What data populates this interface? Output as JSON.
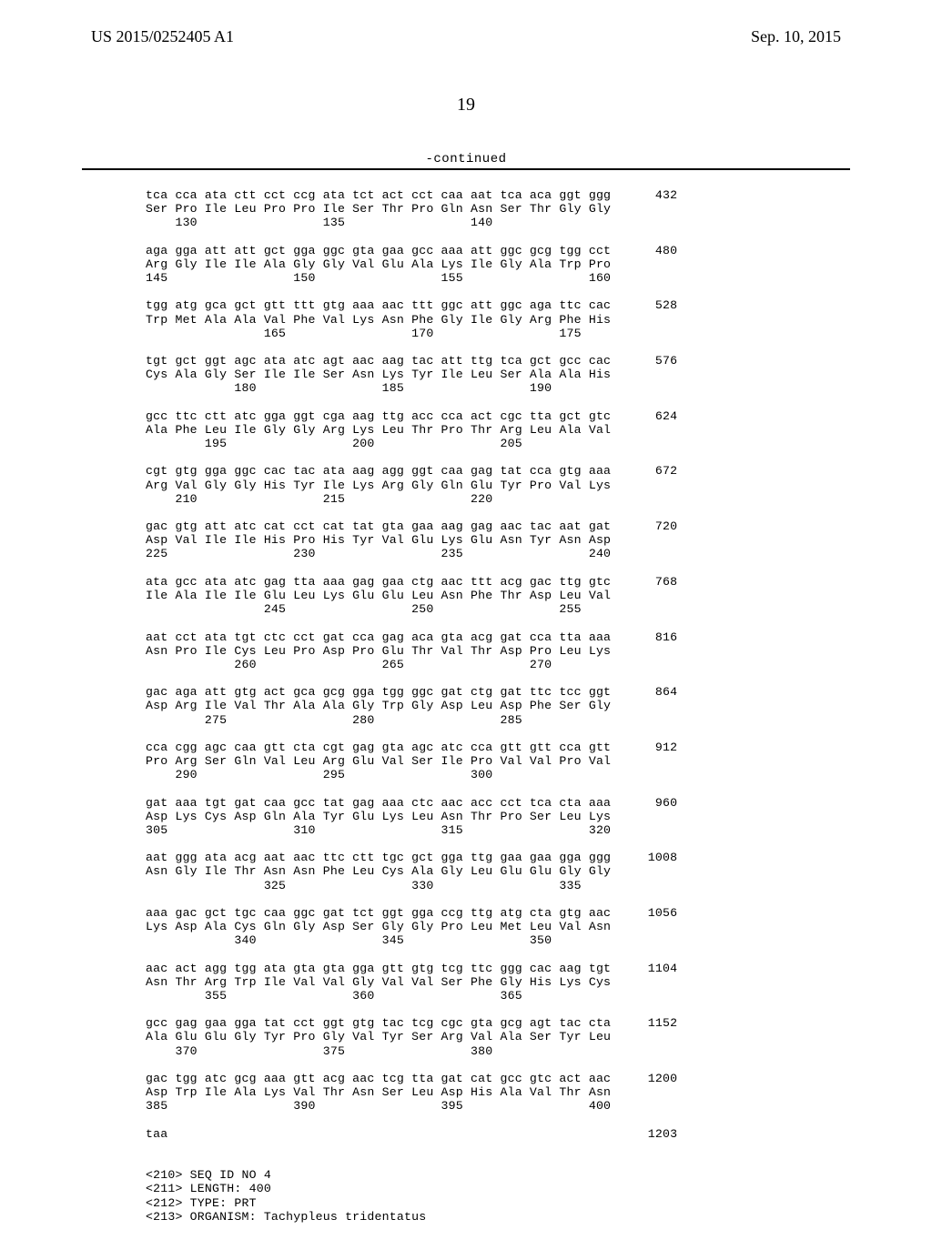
{
  "header": {
    "publication_number": "US 2015/0252405 A1",
    "publication_date": "Sep. 10, 2015"
  },
  "page_number": "19",
  "continued_label": "-continued",
  "sequence_text": "tca cca ata ctt cct ccg ata tct act cct caa aat tca aca ggt ggg      432\nSer Pro Ile Leu Pro Pro Ile Ser Thr Pro Gln Asn Ser Thr Gly Gly\n    130                 135                 140\n\naga gga att att gct gga ggc gta gaa gcc aaa att ggc gcg tgg cct      480\nArg Gly Ile Ile Ala Gly Gly Val Glu Ala Lys Ile Gly Ala Trp Pro\n145                 150                 155                 160\n\ntgg atg gca gct gtt ttt gtg aaa aac ttt ggc att ggc aga ttc cac      528\nTrp Met Ala Ala Val Phe Val Lys Asn Phe Gly Ile Gly Arg Phe His\n                165                 170                 175\n\ntgt gct ggt agc ata atc agt aac aag tac att ttg tca gct gcc cac      576\nCys Ala Gly Ser Ile Ile Ser Asn Lys Tyr Ile Leu Ser Ala Ala His\n            180                 185                 190\n\ngcc ttc ctt atc gga ggt cga aag ttg acc cca act cgc tta gct gtc      624\nAla Phe Leu Ile Gly Gly Arg Lys Leu Thr Pro Thr Arg Leu Ala Val\n        195                 200                 205\n\ncgt gtg gga ggc cac tac ata aag agg ggt caa gag tat cca gtg aaa      672\nArg Val Gly Gly His Tyr Ile Lys Arg Gly Gln Glu Tyr Pro Val Lys\n    210                 215                 220\n\ngac gtg att atc cat cct cat tat gta gaa aag gag aac tac aat gat      720\nAsp Val Ile Ile His Pro His Tyr Val Glu Lys Glu Asn Tyr Asn Asp\n225                 230                 235                 240\n\nata gcc ata atc gag tta aaa gag gaa ctg aac ttt acg gac ttg gtc      768\nIle Ala Ile Ile Glu Leu Lys Glu Glu Leu Asn Phe Thr Asp Leu Val\n                245                 250                 255\n\naat cct ata tgt ctc cct gat cca gag aca gta acg gat cca tta aaa      816\nAsn Pro Ile Cys Leu Pro Asp Pro Glu Thr Val Thr Asp Pro Leu Lys\n            260                 265                 270\n\ngac aga att gtg act gca gcg gga tgg ggc gat ctg gat ttc tcc ggt      864\nAsp Arg Ile Val Thr Ala Ala Gly Trp Gly Asp Leu Asp Phe Ser Gly\n        275                 280                 285\n\ncca cgg agc caa gtt cta cgt gag gta agc atc cca gtt gtt cca gtt      912\nPro Arg Ser Gln Val Leu Arg Glu Val Ser Ile Pro Val Val Pro Val\n    290                 295                 300\n\ngat aaa tgt gat caa gcc tat gag aaa ctc aac acc cct tca cta aaa      960\nAsp Lys Cys Asp Gln Ala Tyr Glu Lys Leu Asn Thr Pro Ser Leu Lys\n305                 310                 315                 320\n\naat ggg ata acg aat aac ttc ctt tgc gct gga ttg gaa gaa gga ggg     1008\nAsn Gly Ile Thr Asn Asn Phe Leu Cys Ala Gly Leu Glu Glu Gly Gly\n                325                 330                 335\n\naaa gac gct tgc caa ggc gat tct ggt gga ccg ttg atg cta gtg aac     1056\nLys Asp Ala Cys Gln Gly Asp Ser Gly Gly Pro Leu Met Leu Val Asn\n            340                 345                 350\n\naac act agg tgg ata gta gta gga gtt gtg tcg ttc ggg cac aag tgt     1104\nAsn Thr Arg Trp Ile Val Val Gly Val Val Ser Phe Gly His Lys Cys\n        355                 360                 365\n\ngcc gag gaa gga tat cct ggt gtg tac tcg cgc gta gcg agt tac cta     1152\nAla Glu Glu Gly Tyr Pro Gly Val Tyr Ser Arg Val Ala Ser Tyr Leu\n    370                 375                 380\n\ngac tgg atc gcg aaa gtt acg aac tcg tta gat cat gcc gtc act aac     1200\nAsp Trp Ile Ala Lys Val Thr Asn Ser Leu Asp His Ala Val Thr Asn\n385                 390                 395                 400\n\ntaa                                                                 1203\n\n\n<210> SEQ ID NO 4\n<211> LENGTH: 400\n<212> TYPE: PRT\n<213> ORGANISM: Tachypleus tridentatus"
}
